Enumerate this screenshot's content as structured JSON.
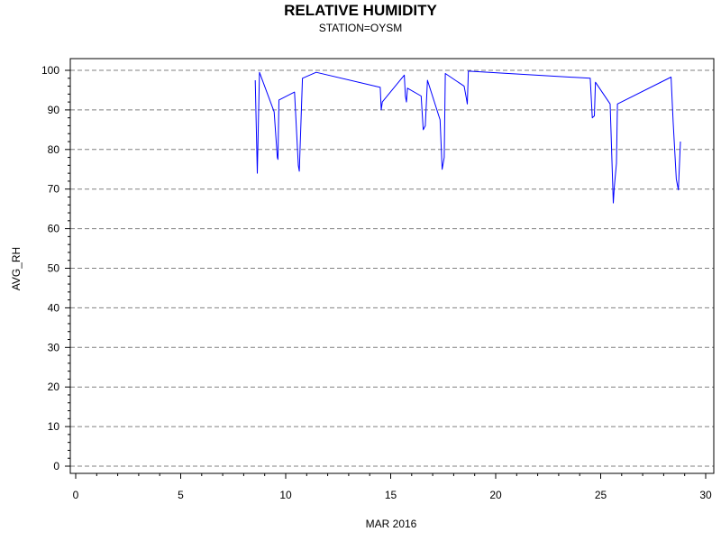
{
  "chart_data": {
    "type": "line",
    "title": "RELATIVE HUMIDITY",
    "subtitle": "STATION=OYSM",
    "xlabel": "MAR 2016",
    "ylabel": "AVG_RH",
    "xlim": [
      0,
      30
    ],
    "ylim": [
      0,
      100
    ],
    "x_ticks": [
      0,
      5,
      10,
      15,
      20,
      25,
      30
    ],
    "y_ticks": [
      0,
      10,
      20,
      30,
      40,
      50,
      60,
      70,
      80,
      90,
      100
    ],
    "grid": "horizontal-dashed",
    "colors": {
      "line": "#0000ff",
      "grid": "#808080",
      "axis": "#000000"
    },
    "series": [
      {
        "values": [
          [
            8.55,
            97.5
          ],
          [
            8.65,
            74.0
          ],
          [
            8.75,
            99.5
          ],
          [
            9.45,
            89.5
          ],
          [
            9.6,
            78.0
          ],
          [
            9.63,
            77.5
          ],
          [
            9.68,
            92.5
          ],
          [
            10.42,
            94.5
          ],
          [
            10.6,
            76.0
          ],
          [
            10.65,
            74.5
          ],
          [
            10.8,
            98.0
          ],
          [
            11.45,
            99.5
          ],
          [
            14.5,
            95.7
          ],
          [
            14.55,
            90.0
          ],
          [
            14.6,
            92.0
          ],
          [
            15.65,
            98.8
          ],
          [
            15.7,
            93.5
          ],
          [
            15.75,
            92.0
          ],
          [
            15.8,
            95.5
          ],
          [
            16.45,
            93.5
          ],
          [
            16.55,
            85.0
          ],
          [
            16.65,
            86.0
          ],
          [
            16.75,
            97.5
          ],
          [
            17.35,
            87.5
          ],
          [
            17.45,
            75.0
          ],
          [
            17.55,
            78.0
          ],
          [
            17.6,
            99.2
          ],
          [
            18.5,
            96.0
          ],
          [
            18.6,
            93.0
          ],
          [
            18.65,
            91.5
          ],
          [
            18.7,
            99.8
          ],
          [
            24.5,
            98.0
          ],
          [
            24.6,
            88.0
          ],
          [
            24.7,
            88.5
          ],
          [
            24.75,
            97.0
          ],
          [
            25.45,
            91.5
          ],
          [
            25.55,
            75.0
          ],
          [
            25.6,
            66.5
          ],
          [
            25.65,
            70.5
          ],
          [
            25.75,
            76.5
          ],
          [
            25.8,
            91.5
          ],
          [
            28.35,
            98.3
          ],
          [
            28.45,
            87.0
          ],
          [
            28.6,
            72.5
          ],
          [
            28.7,
            69.8
          ],
          [
            28.8,
            82.0
          ]
        ]
      }
    ]
  }
}
